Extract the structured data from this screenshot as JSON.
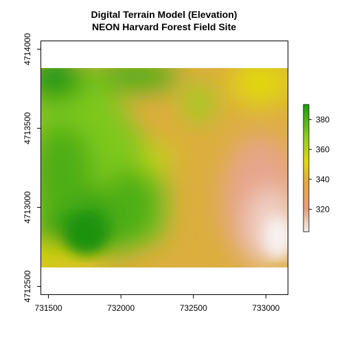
{
  "title_line1": "Digital Terrain Model (Elevation)",
  "title_line2": "NEON Harvard Forest Field Site",
  "chart_data": {
    "type": "heatmap",
    "subject": "elevation raster",
    "xlim": [
      731450,
      733150
    ],
    "ylim": [
      4712450,
      4714050
    ],
    "raster_extent": {
      "xmin": 731450,
      "xmax": 733150,
      "ymin": 4712485,
      "ymax": 4713835
    },
    "x_ticks": [
      731500,
      732000,
      732500,
      733000
    ],
    "y_ticks": [
      4712500,
      4713000,
      4713500,
      4714000
    ],
    "x_tick_labels": [
      "731500",
      "732000",
      "732500",
      "733000"
    ],
    "y_tick_labels": [
      "4712500",
      "4713000",
      "4713500",
      "4714000"
    ],
    "legend": {
      "position": "right",
      "min": 305,
      "max": 390,
      "ticks": [
        320,
        340,
        360,
        380
      ],
      "tick_labels": [
        "320",
        "340",
        "360",
        "380"
      ]
    },
    "colors": {
      "high": "#1e9b12",
      "mid_high": "#8ccf1c",
      "mid": "#e2d80e",
      "mid_low": "#e2a844",
      "low": "#e6a07d",
      "lowest": "#f2f2f2"
    }
  }
}
